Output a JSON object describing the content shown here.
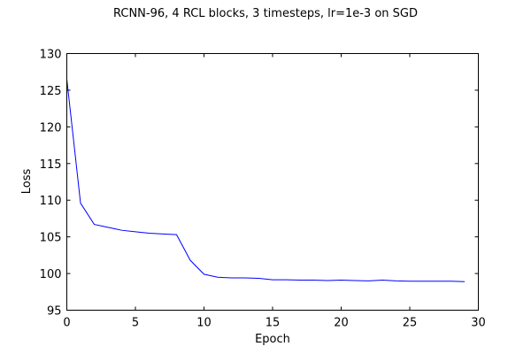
{
  "chart_data": {
    "type": "line",
    "title": "RCNN-96, 4 RCL blocks, 3 timesteps, lr=1e-3 on SGD",
    "xlabel": "Epoch",
    "ylabel": "Loss",
    "xlim": [
      0,
      30
    ],
    "ylim": [
      95,
      130
    ],
    "xticks": [
      0,
      5,
      10,
      15,
      20,
      25,
      30
    ],
    "yticks": [
      95,
      100,
      105,
      110,
      115,
      120,
      125,
      130
    ],
    "grid": false,
    "legend": "none",
    "series": [
      {
        "color": "#0000ff",
        "x": [
          0,
          1,
          2,
          3,
          4,
          5,
          6,
          7,
          8,
          9,
          10,
          11,
          12,
          13,
          14,
          15,
          16,
          17,
          18,
          19,
          20,
          21,
          22,
          23,
          24,
          25,
          26,
          27,
          28,
          29
        ],
        "y": [
          126.5,
          109.6,
          106.7,
          106.3,
          105.9,
          105.7,
          105.5,
          105.4,
          105.3,
          101.8,
          99.9,
          99.5,
          99.4,
          99.4,
          99.35,
          99.15,
          99.15,
          99.1,
          99.1,
          99.05,
          99.1,
          99.05,
          99.0,
          99.1,
          99.0,
          98.95,
          98.95,
          98.95,
          98.95,
          98.9
        ]
      }
    ]
  }
}
